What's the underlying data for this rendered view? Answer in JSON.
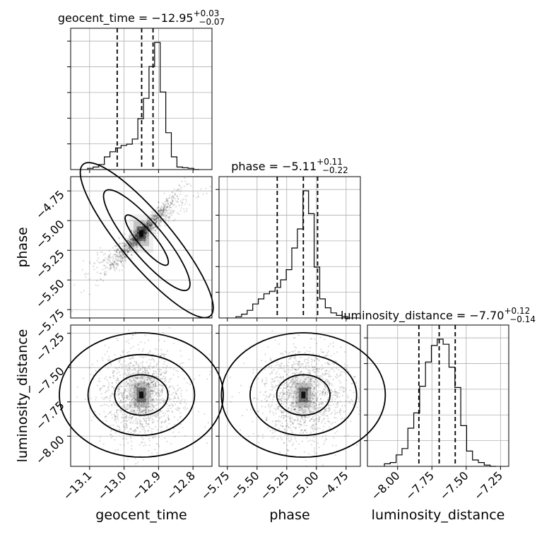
{
  "chart_data": {
    "type": "corner",
    "parameters": [
      "geocent_time",
      "phase",
      "luminosity_distance"
    ],
    "titles": [
      {
        "param": "geocent_time",
        "prefix": "geocent_time = ",
        "median": "−12.95",
        "plus": "+0.03",
        "minus": "−0.07"
      },
      {
        "param": "phase",
        "prefix": "phase = ",
        "median": "−5.11",
        "plus": "+0.11",
        "minus": "−0.22"
      },
      {
        "param": "luminosity_distance",
        "prefix": "luminosity_distance = ",
        "median": "−7.70",
        "plus": "+0.12",
        "minus": "−0.14"
      }
    ],
    "ranges": {
      "geocent_time": [
        -13.155,
        -12.745
      ],
      "phase": [
        -5.82,
        -4.63
      ],
      "luminosity_distance": [
        -8.22,
        -7.19
      ]
    },
    "ticks": {
      "geocent_time": {
        "values": [
          -13.1,
          -13.0,
          -12.9,
          -12.8
        ],
        "labels": [
          "−13.1",
          "−13.0",
          "−12.9",
          "−12.8"
        ]
      },
      "phase": {
        "values": [
          -5.75,
          -5.5,
          -5.25,
          -5.0,
          -4.75
        ],
        "labels": [
          "−5.75",
          "−5.50",
          "−5.25",
          "−5.00",
          "−4.75"
        ]
      },
      "luminosity_distance": {
        "values": [
          -8.0,
          -7.75,
          -7.5,
          -7.25
        ],
        "labels": [
          "−8.00",
          "−7.75",
          "−7.50",
          "−7.25"
        ]
      }
    },
    "histograms": [
      {
        "param": "geocent_time",
        "counts": [
          0.01,
          0.02,
          0.04,
          0.1,
          0.14,
          0.17,
          0.19,
          0.2,
          0.24,
          0.4,
          0.56,
          0.81,
          1.0,
          0.61,
          0.29,
          0.1,
          0.02,
          0.015,
          0.01,
          0.0
        ],
        "quantiles": [
          -13.02,
          -12.949,
          -12.916
        ]
      },
      {
        "param": "phase",
        "counts": [
          0.01,
          0.03,
          0.06,
          0.11,
          0.15,
          0.19,
          0.21,
          0.24,
          0.3,
          0.38,
          0.55,
          0.7,
          1.0,
          0.82,
          0.4,
          0.15,
          0.08,
          0.04,
          0.02,
          0.01
        ],
        "quantiles": [
          -5.33,
          -5.11,
          -4.99
        ]
      },
      {
        "param": "luminosity_distance",
        "counts": [
          0.02,
          0.03,
          0.09,
          0.14,
          0.3,
          0.42,
          0.63,
          0.82,
          0.95,
          1.0,
          0.96,
          0.78,
          0.62,
          0.32,
          0.12,
          0.05,
          0.03,
          0.01,
          0.0
        ],
        "quantiles": [
          -7.845,
          -7.697,
          -7.58
        ]
      }
    ],
    "grid": true,
    "axis_labels": {
      "x": [
        "geocent_time",
        "phase",
        "luminosity_distance"
      ],
      "y": [
        "phase",
        "luminosity_distance"
      ]
    }
  }
}
